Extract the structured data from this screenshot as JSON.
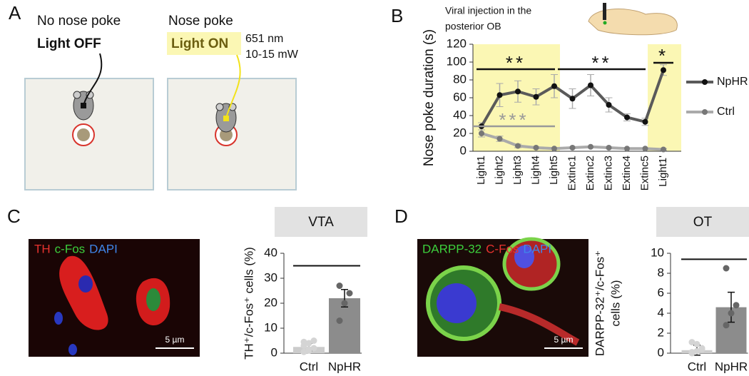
{
  "panel_labels": [
    "A",
    "B",
    "C",
    "D"
  ],
  "schematic": {
    "left_title": "No nose poke",
    "left_state": "Light OFF",
    "right_title": "Nose poke",
    "right_state": "Light ON",
    "wavelength": "651 nm",
    "power": "10-15 mW"
  },
  "injection_note": [
    "Viral injection in the",
    "posterior OB"
  ],
  "micrographs": [
    {
      "labels": [
        {
          "text": "TH",
          "color": "#e8332f"
        },
        {
          "text": "c-Fos",
          "color": "#3ccf3c"
        },
        {
          "text": "DAPI",
          "color": "#3f86ea"
        }
      ],
      "scale_bar": "5 µm"
    },
    {
      "labels": [
        {
          "text": "DARPP-32",
          "color": "#3ccf3c"
        },
        {
          "text": "C-Fos",
          "color": "#e8332f"
        },
        {
          "text": "DAPI",
          "color": "#3f86ea"
        }
      ],
      "scale_bar": "5 µm"
    }
  ],
  "chart_data": [
    {
      "type": "line",
      "y_label": "Nose poke duration (s)",
      "categories": [
        "Light1",
        "Light2",
        "Light3",
        "Light4",
        "Light5",
        "Extinc1",
        "Extinc2",
        "Extinc3",
        "Extinc4",
        "Extinc5",
        "Light1'"
      ],
      "ylim": [
        0,
        120
      ],
      "yticks": [
        0,
        20,
        40,
        60,
        80,
        100,
        120
      ],
      "highlight_color": "#fbf7b4",
      "series": [
        {
          "name": "NpHR",
          "color": "#5a5a5a",
          "values": [
            28,
            63,
            67,
            61,
            73,
            59,
            74,
            52,
            38,
            33,
            91
          ],
          "errors": [
            4,
            13,
            12,
            9,
            13,
            11,
            12,
            8,
            4,
            4,
            6
          ]
        },
        {
          "name": "Ctrl",
          "color": "#aaaaaa",
          "values": [
            20,
            14,
            6,
            4,
            3,
            4,
            5,
            4,
            3,
            3,
            2
          ],
          "errors": [
            4,
            3,
            2,
            1,
            1,
            1,
            1,
            1,
            1,
            1,
            1
          ]
        }
      ],
      "annotations": [
        "**",
        "**",
        "*",
        "***"
      ]
    },
    {
      "type": "bar",
      "title": "VTA",
      "y_label": "TH⁺/c-Fos⁺ cells (%)",
      "categories": [
        "Ctrl",
        "NpHR"
      ],
      "values": [
        2.5,
        22
      ],
      "errors": [
        1.5,
        3.5
      ],
      "colors": [
        "#cccccc",
        "#8c8c8c"
      ],
      "points": [
        [
          0.5,
          1,
          2,
          3,
          4,
          5,
          4.5,
          1.5
        ],
        [
          13,
          20,
          24,
          27
        ]
      ],
      "ylim": [
        0,
        40
      ],
      "yticks": [
        0,
        10,
        20,
        30,
        40
      ]
    },
    {
      "type": "bar",
      "title": "OT",
      "y_label": [
        "DARPP-32⁺/c-Fos⁺",
        "cells (%)"
      ],
      "categories": [
        "Ctrl",
        "NpHR"
      ],
      "values": [
        0.3,
        4.6
      ],
      "errors": [
        0.5,
        1.5
      ],
      "colors": [
        "#cccccc",
        "#8c8c8c"
      ],
      "points": [
        [
          0,
          0.2,
          0.5,
          1.1,
          0.9,
          0.4,
          0.1
        ],
        [
          2.8,
          4,
          4.8,
          8.5
        ]
      ],
      "ylim": [
        0,
        10
      ],
      "yticks": [
        0,
        2,
        4,
        6,
        8,
        10
      ]
    }
  ]
}
